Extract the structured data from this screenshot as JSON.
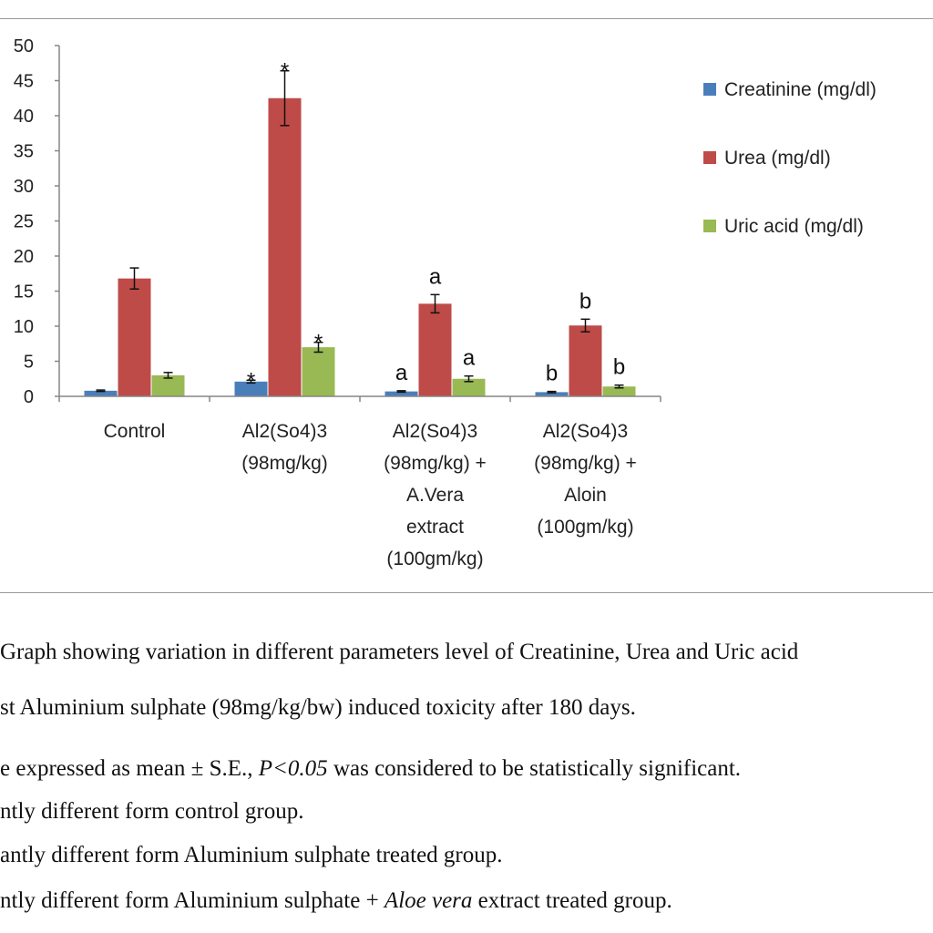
{
  "chart_data": {
    "type": "bar",
    "categories": [
      [
        "Control"
      ],
      [
        "Al2(So4)3",
        "(98mg/kg)"
      ],
      [
        "Al2(So4)3",
        "(98mg/kg) +",
        "A.Vera",
        "extract",
        "(100gm/kg)"
      ],
      [
        "Al2(So4)3",
        "(98mg/kg) +",
        "Aloin",
        "(100gm/kg)"
      ]
    ],
    "series": [
      {
        "name": "Creatinine (mg/dl)",
        "color": "#4a7ebb",
        "values": [
          0.8,
          2.1,
          0.7,
          0.6
        ],
        "errors": [
          0.1,
          0.2,
          0.1,
          0.1
        ],
        "marks": [
          "",
          "*",
          "a",
          "b"
        ]
      },
      {
        "name": "Urea (mg/dl)",
        "color": "#be4b48",
        "values": [
          16.8,
          42.5,
          13.2,
          10.1
        ],
        "errors": [
          1.5,
          3.9,
          1.3,
          0.9
        ],
        "marks": [
          "",
          "*",
          "a",
          "b"
        ]
      },
      {
        "name": "Uric acid (mg/dl)",
        "color": "#98b954",
        "values": [
          3.0,
          7.0,
          2.5,
          1.4
        ],
        "errors": [
          0.4,
          0.7,
          0.4,
          0.2
        ],
        "marks": [
          "",
          "*",
          "a",
          "b"
        ]
      }
    ],
    "ylim": [
      0,
      50
    ],
    "yticks": [
      "0",
      "5",
      "10",
      "15",
      "20",
      "25",
      "30",
      "35",
      "40",
      "45",
      "50"
    ],
    "legend_position": "right",
    "grid": false
  },
  "caption": {
    "line1": "Graph showing variation in different parameters level of Creatinine, Urea and Uric acid",
    "line2": "st Aluminium sulphate (98mg/kg/bw) induced toxicity after 180 days.",
    "line3_a": "e expressed as mean ± S.E., ",
    "line3_p": "P<0.05",
    "line3_b": " was considered to be statistically significant.",
    "line4": "ntly different form control group.",
    "line5": "antly different form Aluminium sulphate treated group.",
    "line6_a": "ntly different form Aluminium sulphate + ",
    "line6_i": "Aloe vera",
    "line6_b": " extract treated group."
  }
}
